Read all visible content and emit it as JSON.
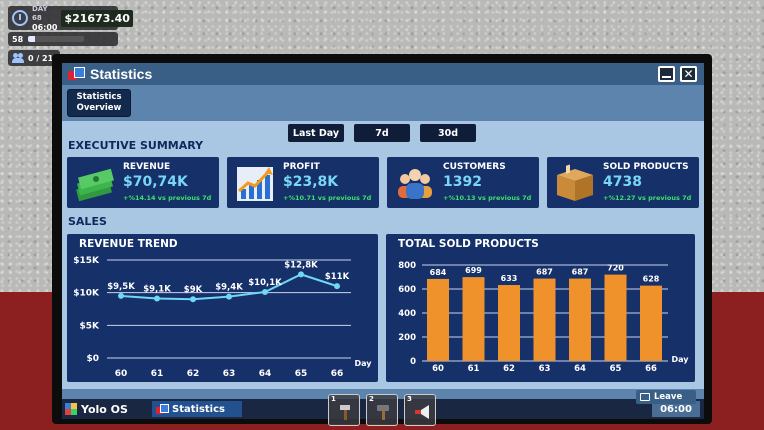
{
  "hud": {
    "day": "DAY 68",
    "time": "06:00",
    "money": "$21673.40",
    "level": "58",
    "level_progress": 0.12,
    "staff": "0 / 21"
  },
  "window": {
    "title": "Statistics",
    "tab": "Statistics\nOverview"
  },
  "period_buttons": [
    "Last Day",
    "7d",
    "30d"
  ],
  "sections": {
    "executive_summary": "EXECUTIVE SUMMARY",
    "sales": "SALES"
  },
  "kpis": [
    {
      "label": "REVENUE",
      "value": "$70,74K",
      "change": "+%14.14 vs previous 7d",
      "icon": "cash-stack-icon"
    },
    {
      "label": "PROFIT",
      "value": "$23,8K",
      "change": "+%10.71 vs previous 7d",
      "icon": "trending-up-chart-icon"
    },
    {
      "label": "CUSTOMERS",
      "value": "1392",
      "change": "+%10.13 vs previous 7d",
      "icon": "people-group-icon"
    },
    {
      "label": "SOLD PRODUCTS",
      "value": "4738",
      "change": "+%12.27 vs previous 7d",
      "icon": "cardboard-box-icon"
    }
  ],
  "chart_data": [
    {
      "type": "line",
      "title": "REVENUE TREND",
      "xlabel": "Day",
      "ylabel": "",
      "x": [
        "60",
        "61",
        "62",
        "63",
        "64",
        "65",
        "66"
      ],
      "values": [
        9500,
        9100,
        9000,
        9400,
        10100,
        12800,
        11000
      ],
      "data_labels": [
        "$9,5K",
        "$9,1K",
        "$9K",
        "$9,4K",
        "$10,1K",
        "$12,8K",
        "$11K"
      ],
      "ylim": [
        0,
        15000
      ],
      "yticks": [
        "$0",
        "$5K",
        "$10K",
        "$15K"
      ],
      "color": "#6fd8f5"
    },
    {
      "type": "bar",
      "title": "TOTAL SOLD PRODUCTS",
      "xlabel": "Day",
      "categories": [
        "60",
        "61",
        "62",
        "63",
        "64",
        "65",
        "66"
      ],
      "values": [
        684,
        699,
        633,
        687,
        687,
        720,
        628
      ],
      "ylim": [
        0,
        800
      ],
      "yticks": [
        "0",
        "200",
        "400",
        "600",
        "800"
      ],
      "color": "#f0922b"
    }
  ],
  "taskbar": {
    "os_name": "Yolo OS",
    "active_app": "Statistics",
    "clock": "06:00",
    "leave": "Leave"
  },
  "hotbar": [
    "1",
    "2",
    "3"
  ]
}
